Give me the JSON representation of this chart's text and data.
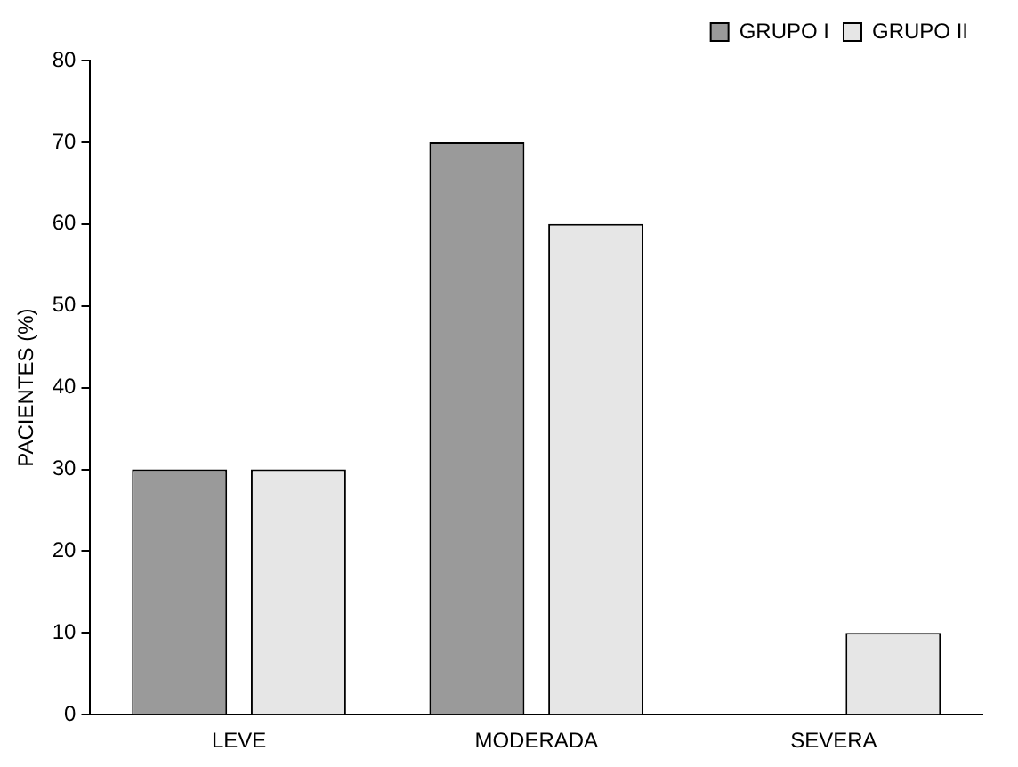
{
  "chart_data": {
    "type": "bar",
    "ylabel": "PACIENTES (%)",
    "categories": [
      "LEVE",
      "MODERADA",
      "SEVERA"
    ],
    "series": [
      {
        "name": "GRUPO I",
        "color": "#9a9a9a",
        "values": [
          30,
          70,
          0
        ]
      },
      {
        "name": "GRUPO II",
        "color": "#e6e6e6",
        "values": [
          30,
          60,
          10
        ]
      }
    ],
    "ylim": [
      0,
      80
    ],
    "yticks": [
      0,
      10,
      20,
      30,
      40,
      50,
      60,
      70,
      80
    ],
    "grid": false,
    "legend": "top right"
  }
}
